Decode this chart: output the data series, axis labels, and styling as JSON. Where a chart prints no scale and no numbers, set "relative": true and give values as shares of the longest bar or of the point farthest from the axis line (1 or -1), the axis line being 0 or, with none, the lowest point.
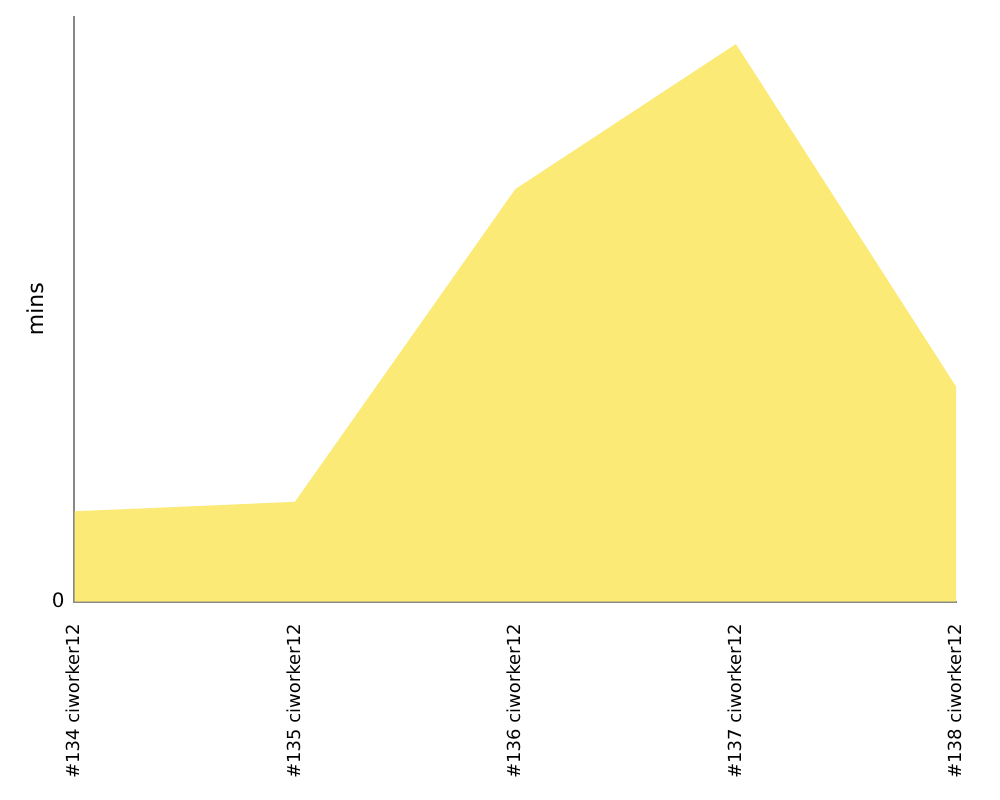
{
  "chart_data": {
    "type": "area",
    "relative": true,
    "ylabel": "mins",
    "annotations": [
      "0"
    ],
    "categories": [
      "#134 ciworker12",
      "#135 ciworker12",
      "#136 ciworker12",
      "#137 ciworker12",
      "#138 ciworker12"
    ],
    "series": [
      {
        "color": "#fcea76",
        "values": [
          0.162,
          0.179,
          0.74,
          1,
          0.385
        ]
      }
    ],
    "grid": false,
    "legend": false
  }
}
